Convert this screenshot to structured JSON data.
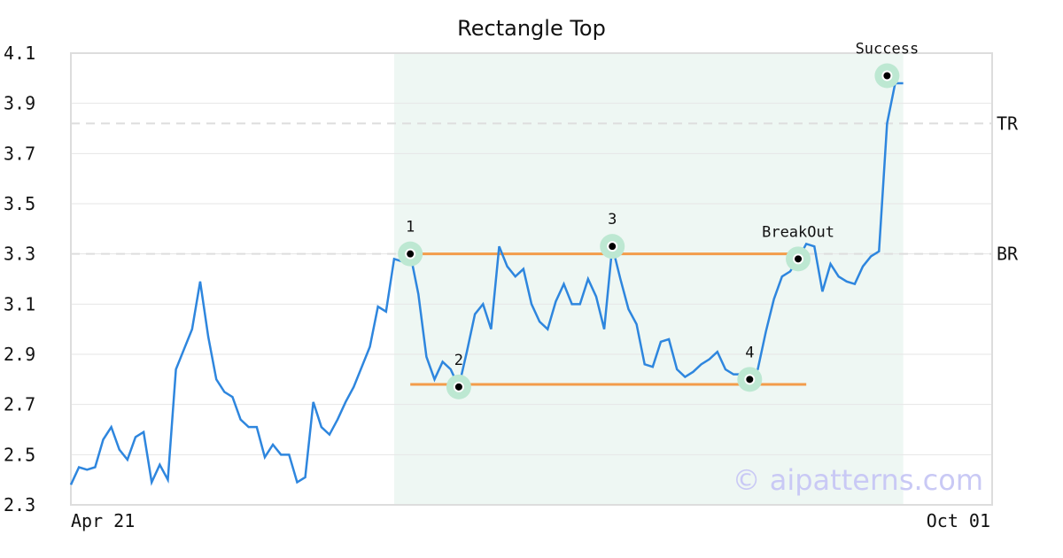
{
  "chart_data": {
    "type": "line",
    "title": "Rectangle Top",
    "xlim": [
      0,
      114
    ],
    "xticks": [
      {
        "value": 0,
        "label": "Apr 21"
      },
      {
        "value": 114,
        "label": "Oct 01"
      }
    ],
    "ylim": [
      2.3,
      4.1
    ],
    "yticks": [
      2.3,
      2.5,
      2.7,
      2.9,
      3.1,
      3.3,
      3.5,
      3.7,
      3.9,
      4.1
    ],
    "grid": true,
    "series": [
      {
        "color": "#2e86de",
        "values": [
          2.38,
          2.45,
          2.44,
          2.45,
          2.56,
          2.61,
          2.52,
          2.48,
          2.57,
          2.59,
          2.39,
          2.46,
          2.4,
          2.84,
          2.92,
          3.0,
          3.19,
          2.97,
          2.8,
          2.75,
          2.73,
          2.64,
          2.61,
          2.61,
          2.49,
          2.54,
          2.5,
          2.5,
          2.39,
          2.41,
          2.71,
          2.61,
          2.58,
          2.64,
          2.71,
          2.77,
          2.85,
          2.93,
          3.09,
          3.07,
          3.28,
          3.27,
          3.3,
          3.14,
          2.89,
          2.8,
          2.87,
          2.84,
          2.77,
          2.91,
          3.06,
          3.1,
          3.0,
          3.33,
          3.25,
          3.21,
          3.24,
          3.1,
          3.03,
          3.0,
          3.11,
          3.18,
          3.1,
          3.1,
          3.2,
          3.13,
          3.0,
          3.33,
          3.2,
          3.08,
          3.02,
          2.86,
          2.85,
          2.95,
          2.96,
          2.84,
          2.81,
          2.83,
          2.86,
          2.88,
          2.91,
          2.84,
          2.82,
          2.82,
          2.8,
          2.84,
          2.99,
          3.12,
          3.21,
          3.23,
          3.28,
          3.34,
          3.33,
          3.15,
          3.26,
          3.21,
          3.19,
          3.18,
          3.25,
          3.29,
          3.31,
          3.82,
          3.98,
          3.98
        ]
      }
    ],
    "highlight_x": [
      40,
      103
    ],
    "levels": [
      {
        "label": "TR",
        "value": 3.82
      },
      {
        "label": "BR",
        "value": 3.3
      }
    ],
    "pattern_lines": [
      {
        "color": "#f39c4a",
        "x": [
          42,
          91
        ],
        "y": 3.3
      },
      {
        "color": "#f39c4a",
        "x": [
          42,
          91
        ],
        "y": 2.78
      }
    ],
    "annotations": [
      {
        "label": "1",
        "x": 42,
        "y": 3.3
      },
      {
        "label": "2",
        "x": 48,
        "y": 2.77
      },
      {
        "label": "3",
        "x": 67,
        "y": 3.33
      },
      {
        "label": "4",
        "x": 84,
        "y": 2.8
      },
      {
        "label": "BreakOut",
        "x": 90,
        "y": 3.28
      },
      {
        "label": "Success",
        "x": 101,
        "y": 4.01
      }
    ],
    "watermark": "© aipatterns.com"
  }
}
